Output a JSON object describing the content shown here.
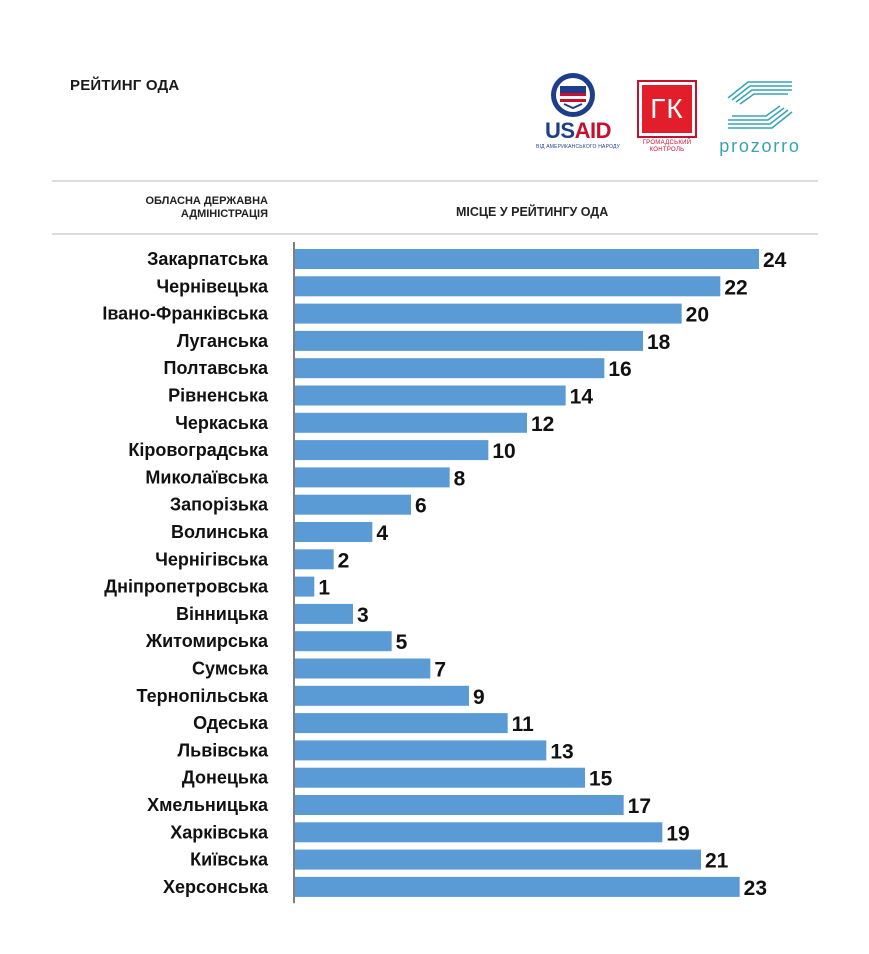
{
  "header": {
    "title": "РЕЙТИНГ ОДА"
  },
  "logos": {
    "usaid": {
      "word_us": "US",
      "word_aid": "AID",
      "subtitle": "ВІД АМЕРИКАНСЬКОГО НАРОДУ",
      "colors": {
        "blue": "#1d3e8a",
        "red": "#c8102e"
      }
    },
    "gk": {
      "mark": "ГК",
      "subtitle_line1": "ГРОМАДСЬКИЙ",
      "subtitle_line2": "КОНТРОЛЬ",
      "color": "#e31e2b"
    },
    "prozorro": {
      "word": "prozorro",
      "color": "#36a4b4"
    }
  },
  "columns": {
    "admin": "ОБЛАСНА ДЕРЖАВНА АДМІНІСТРАЦІЯ",
    "rank": "МІСЦЕ У РЕЙТИНГУ ОДА"
  },
  "chart_data": {
    "type": "bar",
    "orientation": "horizontal",
    "bar_color": "#5b9bd5",
    "axis_color": "#555555",
    "xlim": [
      0,
      24
    ],
    "categories": [
      "Закарпатська",
      "Чернівецька",
      "Івано-Франківська",
      "Луганська",
      "Полтавська",
      "Рівненська",
      "Черкаська",
      "Кіровоградська",
      "Миколаївська",
      "Запорізька",
      "Волинська",
      "Чернігівська",
      "Дніпропетровська",
      "Вінницька",
      "Житомирська",
      "Сумська",
      "Тернопільська",
      "Одеська",
      "Львівська",
      "Донецька",
      "Хмельницька",
      "Харківська",
      "Київська",
      "Херсонська"
    ],
    "values": [
      24,
      22,
      20,
      18,
      16,
      14,
      12,
      10,
      8,
      6,
      4,
      2,
      1,
      3,
      5,
      7,
      9,
      11,
      13,
      15,
      17,
      19,
      21,
      23
    ]
  }
}
